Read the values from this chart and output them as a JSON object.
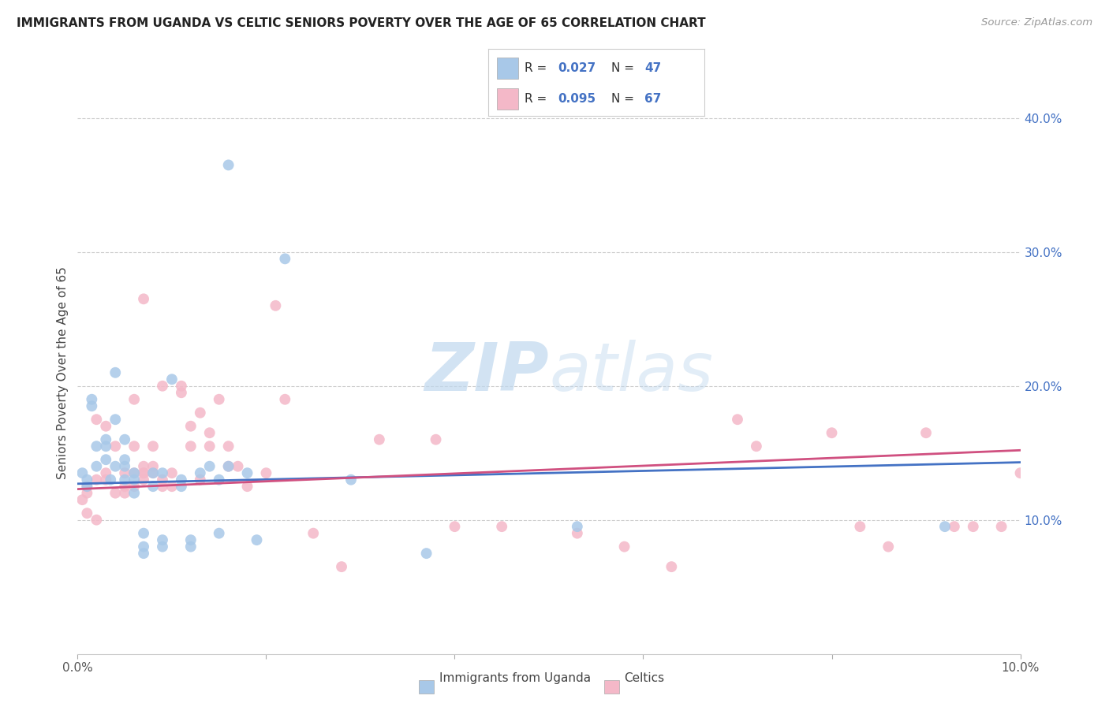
{
  "title": "IMMIGRANTS FROM UGANDA VS CELTIC SENIORS POVERTY OVER THE AGE OF 65 CORRELATION CHART",
  "source": "Source: ZipAtlas.com",
  "ylabel": "Seniors Poverty Over the Age of 65",
  "xlim": [
    0.0,
    0.1
  ],
  "ylim": [
    0.0,
    0.42
  ],
  "color_blue": "#a8c8e8",
  "color_pink": "#f4b8c8",
  "color_blue_line": "#4472c4",
  "color_pink_line": "#d05080",
  "color_right_axis": "#4472c4",
  "watermark_color": "#c8dff0",
  "grid_color": "#cccccc",
  "title_color": "#222222",
  "source_color": "#999999",
  "blue_scatter_x": [
    0.0005,
    0.001,
    0.001,
    0.0015,
    0.0015,
    0.002,
    0.002,
    0.003,
    0.003,
    0.003,
    0.0035,
    0.004,
    0.004,
    0.004,
    0.005,
    0.005,
    0.005,
    0.005,
    0.006,
    0.006,
    0.006,
    0.007,
    0.007,
    0.007,
    0.008,
    0.008,
    0.009,
    0.009,
    0.009,
    0.01,
    0.011,
    0.011,
    0.012,
    0.012,
    0.013,
    0.014,
    0.015,
    0.015,
    0.016,
    0.016,
    0.018,
    0.019,
    0.022,
    0.029,
    0.037,
    0.053,
    0.092
  ],
  "blue_scatter_y": [
    0.135,
    0.125,
    0.13,
    0.185,
    0.19,
    0.14,
    0.155,
    0.16,
    0.145,
    0.155,
    0.13,
    0.14,
    0.175,
    0.21,
    0.13,
    0.14,
    0.145,
    0.16,
    0.135,
    0.13,
    0.12,
    0.09,
    0.08,
    0.075,
    0.125,
    0.135,
    0.08,
    0.085,
    0.135,
    0.205,
    0.13,
    0.125,
    0.08,
    0.085,
    0.135,
    0.14,
    0.09,
    0.13,
    0.14,
    0.365,
    0.135,
    0.085,
    0.295,
    0.13,
    0.075,
    0.095,
    0.095
  ],
  "pink_scatter_x": [
    0.0005,
    0.001,
    0.001,
    0.001,
    0.002,
    0.002,
    0.002,
    0.003,
    0.003,
    0.003,
    0.004,
    0.004,
    0.005,
    0.005,
    0.005,
    0.006,
    0.006,
    0.006,
    0.006,
    0.007,
    0.007,
    0.007,
    0.007,
    0.007,
    0.008,
    0.008,
    0.008,
    0.009,
    0.009,
    0.009,
    0.01,
    0.01,
    0.011,
    0.011,
    0.012,
    0.012,
    0.013,
    0.013,
    0.014,
    0.014,
    0.015,
    0.016,
    0.016,
    0.017,
    0.018,
    0.02,
    0.021,
    0.022,
    0.025,
    0.028,
    0.032,
    0.038,
    0.04,
    0.045,
    0.053,
    0.058,
    0.063,
    0.07,
    0.072,
    0.08,
    0.083,
    0.086,
    0.09,
    0.093,
    0.095,
    0.098,
    0.1
  ],
  "pink_scatter_y": [
    0.115,
    0.12,
    0.125,
    0.105,
    0.175,
    0.1,
    0.13,
    0.13,
    0.135,
    0.17,
    0.12,
    0.155,
    0.12,
    0.125,
    0.135,
    0.125,
    0.135,
    0.155,
    0.19,
    0.13,
    0.135,
    0.135,
    0.14,
    0.265,
    0.135,
    0.14,
    0.155,
    0.125,
    0.13,
    0.2,
    0.125,
    0.135,
    0.195,
    0.2,
    0.155,
    0.17,
    0.13,
    0.18,
    0.155,
    0.165,
    0.19,
    0.155,
    0.14,
    0.14,
    0.125,
    0.135,
    0.26,
    0.19,
    0.09,
    0.065,
    0.16,
    0.16,
    0.095,
    0.095,
    0.09,
    0.08,
    0.065,
    0.175,
    0.155,
    0.165,
    0.095,
    0.08,
    0.165,
    0.095,
    0.095,
    0.095,
    0.135
  ],
  "blue_line_x": [
    0.0,
    0.1
  ],
  "blue_line_y": [
    0.127,
    0.143
  ],
  "pink_line_x": [
    0.0,
    0.1
  ],
  "pink_line_y": [
    0.123,
    0.152
  ]
}
